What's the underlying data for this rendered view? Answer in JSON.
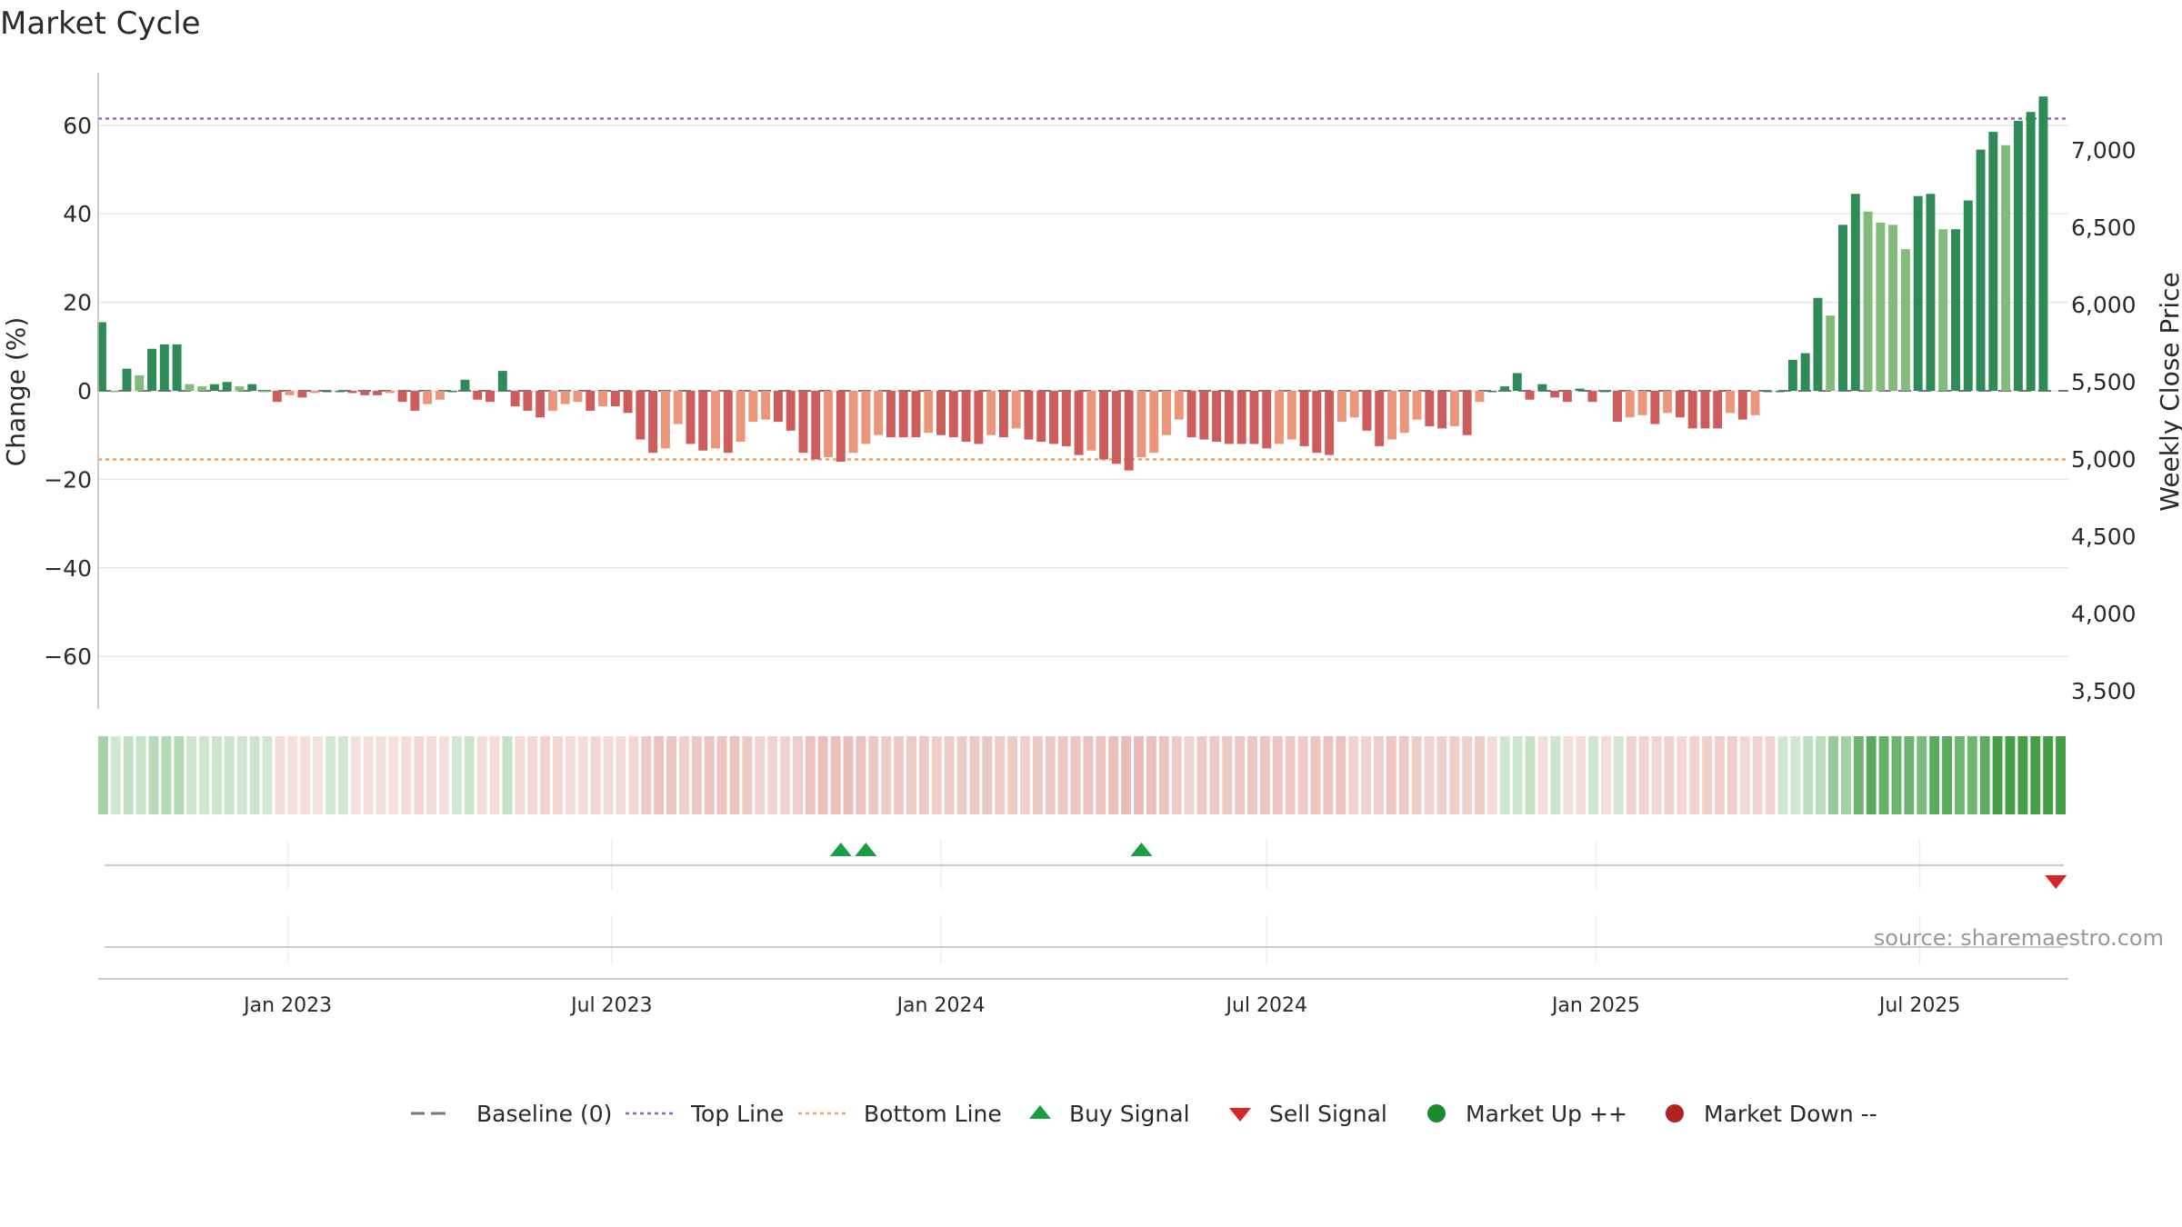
{
  "chart_data": {
    "type": "bar",
    "title": "Market Cycle",
    "ylabel": "Change (%)",
    "y2label": "Weekly Close Price",
    "ylim": [
      -72,
      72
    ],
    "yticks": [
      60,
      40,
      20,
      0,
      -20,
      -40,
      -60
    ],
    "ytick_labels": [
      "60",
      "40",
      "20",
      "0",
      "−20",
      "−40",
      "−60"
    ],
    "y2lim": [
      3300,
      7450
    ],
    "y2ticks": [
      7000,
      6500,
      6000,
      5500,
      5000,
      4500,
      4000,
      3500
    ],
    "y2tick_labels": [
      "7,000",
      "6,500",
      "6,000",
      "5,500",
      "5,000",
      "4,500",
      "4,000",
      "3,500"
    ],
    "xlim": [
      "2022-09-17",
      "2025-09-22"
    ],
    "xticks": [
      "2023-01-01",
      "2023-07-01",
      "2024-01-01",
      "2024-07-01",
      "2025-01-01",
      "2025-07-01"
    ],
    "xtick_labels": [
      "Jan 2023",
      "Jul 2023",
      "Jan 2024",
      "Jul 2024",
      "Jan 2025",
      "Jul 2025"
    ],
    "grid": true,
    "top_line": 61.5,
    "bottom_line": -15.5,
    "start_week": "2022-09-19",
    "series": [
      {
        "name": "Change (%)",
        "values": [
          15.5,
          0,
          5,
          3.5,
          9.5,
          10.5,
          10.5,
          1.5,
          1,
          1.5,
          2,
          1,
          1.5,
          0,
          -2.5,
          -1,
          -1.5,
          -0.5,
          0,
          0,
          -0.5,
          -1,
          -1,
          -0.5,
          -2.5,
          -4.5,
          -3,
          -2,
          0,
          2.5,
          -2,
          -2.5,
          4.5,
          -3.5,
          -4.5,
          -6,
          -4.5,
          -3,
          -2.5,
          -4.5,
          -3.5,
          -3.5,
          -5,
          -11,
          -14,
          -13,
          -7.5,
          -12,
          -13.5,
          -13,
          -14,
          -11.5,
          -7,
          -6.5,
          -7,
          -9,
          -14,
          -15.5,
          -15,
          -16,
          -14,
          -12,
          -10,
          -10.5,
          -10.5,
          -10.5,
          -9.5,
          -10,
          -10.5,
          -11.5,
          -12,
          -10,
          -10.5,
          -8.5,
          -11,
          -11.5,
          -12,
          -12.5,
          -14.5,
          -13.5,
          -15.5,
          -16.5,
          -18,
          -15,
          -14,
          -10,
          -6.5,
          -10.5,
          -11,
          -11.5,
          -12,
          -12,
          -12,
          -13,
          -12,
          -11,
          -12.5,
          -14,
          -14.5,
          -7,
          -6,
          -9,
          -12.5,
          -11,
          -9.5,
          -6.5,
          -8,
          -8.5,
          -8,
          -10,
          -2.5,
          0,
          1,
          4,
          -2,
          1.5,
          -1.5,
          -2.5,
          0.5,
          -2.5,
          0,
          -7,
          -6,
          -5.5,
          -7.5,
          -5,
          -6,
          -8.5,
          -8.5,
          -8.5,
          -5,
          -6.5,
          -5.5,
          0,
          0,
          7,
          8.5,
          21,
          17,
          37.5,
          44.5,
          40.5,
          38,
          37.5,
          32,
          44,
          44.5,
          36.5,
          36.5,
          43,
          54.5,
          58.5,
          55.5,
          61,
          63,
          66.5
        ]
      },
      {
        "name": "Weekly Close Price",
        "values": []
      }
    ],
    "signals": {
      "buy": [
        "2023-11-06",
        "2023-11-20",
        "2024-04-22"
      ],
      "sell": [
        "2025-09-15"
      ]
    },
    "legend": {
      "placement": "bottom",
      "items": [
        {
          "label": "Baseline (0)",
          "marker": "dash",
          "color": "#777777"
        },
        {
          "label": "Top Line",
          "marker": "dotted",
          "color": "#9467bd"
        },
        {
          "label": "Bottom Line",
          "marker": "dotted",
          "color": "#f4a261"
        },
        {
          "label": "Buy Signal",
          "marker": "triangle-up",
          "color": "#1a9e45"
        },
        {
          "label": "Sell Signal",
          "marker": "triangle-down",
          "color": "#d62728"
        },
        {
          "label": "Market Up ++",
          "marker": "circle",
          "color": "#1e8a2e"
        },
        {
          "label": "Market Down --",
          "marker": "circle",
          "color": "#b22222"
        }
      ]
    },
    "source": "source: sharemaestro.com"
  },
  "colors": {
    "up_strong": "#2e8b57",
    "up_weak": "#82bb7a",
    "down_strong": "#cd5c5c",
    "down_weak": "#e9967a",
    "top_line": "#9467bd",
    "bottom_line": "#f4a261",
    "heat_green": "#43a047",
    "heat_red": "#c0392b",
    "buy": "#1a9e45",
    "sell": "#d62728"
  }
}
